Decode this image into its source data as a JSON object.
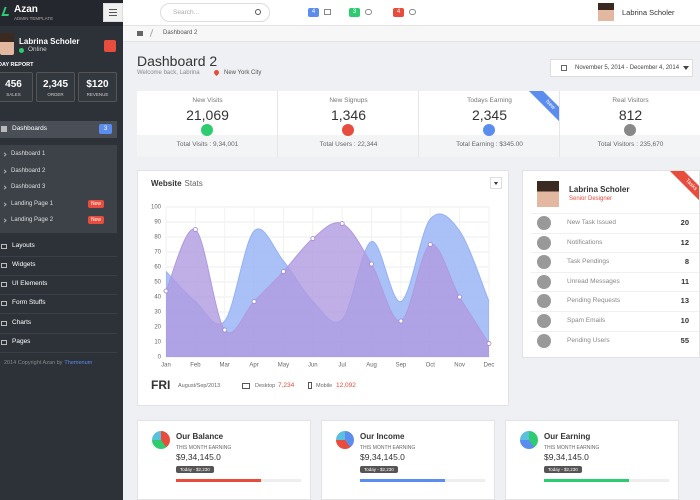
{
  "sidebar": {
    "brand": "Azan",
    "tagline": "ADMIN TEMPLATE",
    "user": "Labrina Scholer",
    "status": "Online",
    "report_title": "DAY REPORT",
    "report": [
      {
        "value": "456",
        "label": "SALES"
      },
      {
        "value": "2,345",
        "label": "ORDER"
      },
      {
        "value": "$120",
        "label": "REVENUE"
      }
    ],
    "menu_top": {
      "label": "Dashboards",
      "badge": "3"
    },
    "submenu": [
      {
        "label": "Dashboard 1"
      },
      {
        "label": "Dashboard 2"
      },
      {
        "label": "Dashboard 3"
      },
      {
        "label": "Landing Page 1",
        "badge": "New"
      },
      {
        "label": "Landing Page 2",
        "badge": "New"
      }
    ],
    "menu": [
      "Layouts",
      "Widgets",
      "UI Elements",
      "Form Stuffs",
      "Charts",
      "Pages"
    ],
    "footer_text": "2014 Copyright Azan by",
    "footer_link": "Themenum"
  },
  "topbar": {
    "search": "Search...",
    "badges": [
      "4",
      "3",
      "4"
    ],
    "user": "Labrina Scholer"
  },
  "breadcrumb": "Dashboard 2",
  "header": {
    "title": "Dashboard 2",
    "welcome": "Welcome back, Labrina",
    "location": "New York City",
    "date_range": "November 5, 2014 - December 4, 2014"
  },
  "stat_cards": [
    {
      "label": "New Visits",
      "value": "21,069",
      "total": "Total Visits : 9,34,001"
    },
    {
      "label": "New Signups",
      "value": "1,346",
      "total": "Total Users : 22,344"
    },
    {
      "label": "Todays Earning",
      "value": "2,345",
      "total": "Total Earning : $345.00",
      "ribbon": "New"
    },
    {
      "label": "Real Visitors",
      "value": "812",
      "total": "Total Visitors : 235,670"
    }
  ],
  "chart_data": {
    "type": "area",
    "title": "Website",
    "subtitle": "Stats",
    "categories": [
      "Jan",
      "Feb",
      "Mar",
      "Apr",
      "May",
      "Jun",
      "Jul",
      "Aug",
      "Sep",
      "Oct",
      "Nov",
      "Dec"
    ],
    "series": [
      {
        "color": "#94b1f5",
        "values": [
          57,
          37,
          24,
          84,
          64,
          37,
          25,
          77,
          37,
          92,
          84,
          37
        ]
      },
      {
        "color": "#b09ae0",
        "values": [
          44,
          85,
          18,
          37,
          57,
          79,
          89,
          62,
          24,
          75,
          40,
          9
        ]
      }
    ],
    "ylim": [
      0,
      100
    ],
    "yticks": [
      0,
      10,
      20,
      30,
      40,
      50,
      60,
      70,
      80,
      90,
      100
    ],
    "grid": true
  },
  "chart_footer": {
    "day": "FRI",
    "date": "August/Sep/2013",
    "desktop_label": "Desktop",
    "desktop_value": "7,234",
    "mobile_label": "Mobile",
    "mobile_value": "12,092"
  },
  "profile": {
    "name": "Labrina Scholer",
    "role": "Senior Designer",
    "ribbon": "Tasks",
    "tasks": [
      {
        "label": "New Task Issued",
        "count": 20
      },
      {
        "label": "Notifications",
        "count": 12
      },
      {
        "label": "Task Pendings",
        "count": 8
      },
      {
        "label": "Unread Messages",
        "count": 11
      },
      {
        "label": "Pending Requests",
        "count": 13
      },
      {
        "label": "Spam Emails",
        "count": 10
      },
      {
        "label": "Pending Users",
        "count": 55
      }
    ]
  },
  "earnings": [
    {
      "title": "Our Balance",
      "subtitle": "THIS MONTH EARNING",
      "amount": "$9,34,145.0",
      "badge": "Today - $2,230"
    },
    {
      "title": "Our Income",
      "subtitle": "THIS MONTH EARNING",
      "amount": "$9,34,145.0",
      "badge": "Today - $2,230"
    },
    {
      "title": "Our Earning",
      "subtitle": "THIS MONTH EARNING",
      "amount": "$9,34,145.0",
      "badge": "Today - $2,230"
    }
  ]
}
